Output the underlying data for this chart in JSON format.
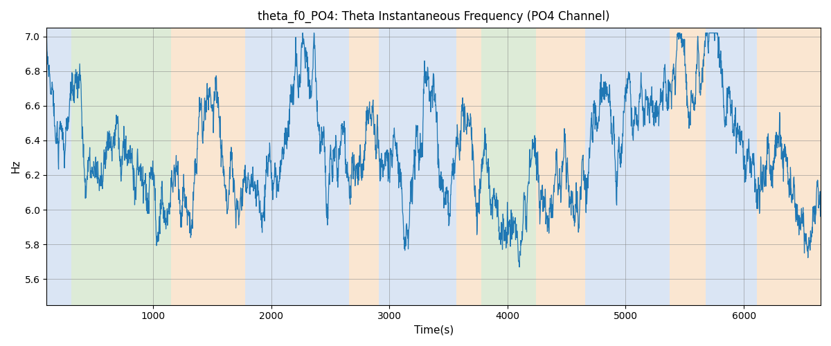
{
  "title": "theta_f0_PO4: Theta Instantaneous Frequency (PO4 Channel)",
  "xlabel": "Time(s)",
  "ylabel": "Hz",
  "ylim": [
    5.45,
    7.05
  ],
  "xlim": [
    100,
    6650
  ],
  "line_color": "#1f77b4",
  "line_width": 0.9,
  "bands": [
    {
      "start": 100,
      "end": 310,
      "color": "#aec6e8",
      "alpha": 0.45
    },
    {
      "start": 310,
      "end": 1150,
      "color": "#b5d4a8",
      "alpha": 0.45
    },
    {
      "start": 1150,
      "end": 1780,
      "color": "#f5c99a",
      "alpha": 0.45
    },
    {
      "start": 1780,
      "end": 2660,
      "color": "#aec6e8",
      "alpha": 0.45
    },
    {
      "start": 2660,
      "end": 2910,
      "color": "#f5c99a",
      "alpha": 0.45
    },
    {
      "start": 2910,
      "end": 3570,
      "color": "#aec6e8",
      "alpha": 0.45
    },
    {
      "start": 3570,
      "end": 3780,
      "color": "#f5c99a",
      "alpha": 0.45
    },
    {
      "start": 3780,
      "end": 4240,
      "color": "#b5d4a8",
      "alpha": 0.45
    },
    {
      "start": 4240,
      "end": 4660,
      "color": "#f5c99a",
      "alpha": 0.45
    },
    {
      "start": 4660,
      "end": 5370,
      "color": "#aec6e8",
      "alpha": 0.45
    },
    {
      "start": 5370,
      "end": 5680,
      "color": "#f5c99a",
      "alpha": 0.45
    },
    {
      "start": 5680,
      "end": 6110,
      "color": "#aec6e8",
      "alpha": 0.45
    },
    {
      "start": 6110,
      "end": 6650,
      "color": "#f5c99a",
      "alpha": 0.45
    }
  ],
  "seed": 7,
  "n_points": 3000,
  "t_start": 100,
  "t_end": 6650,
  "mean_freq": 6.38,
  "figsize": [
    12.0,
    5.0
  ],
  "dpi": 100
}
